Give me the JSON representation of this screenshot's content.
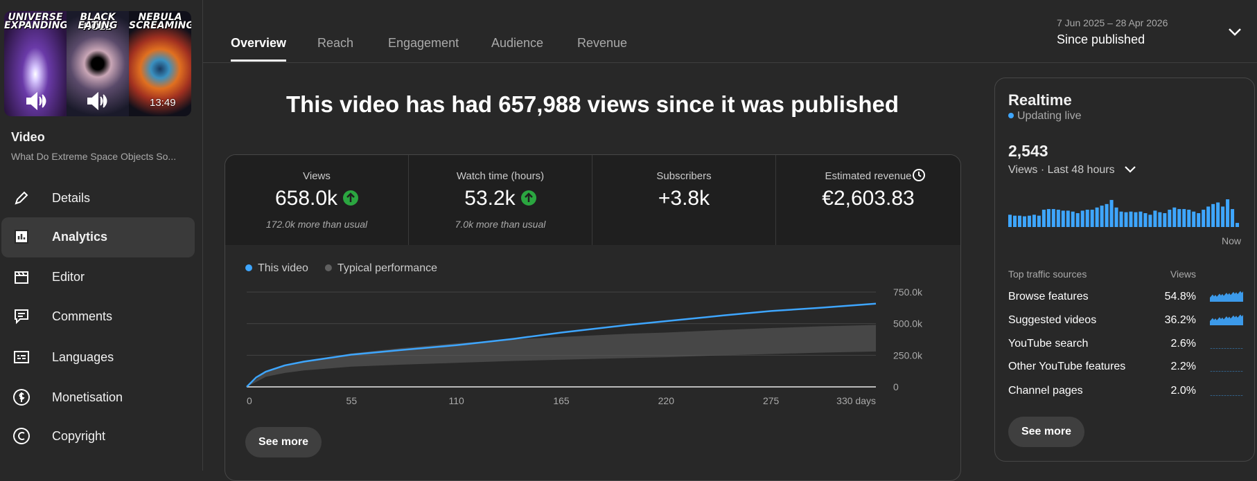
{
  "sidebar": {
    "thumbnail": {
      "panels": [
        [
          "UNIVERSE",
          "EXPANDING"
        ],
        [
          "BLACK HOLE",
          "EATING"
        ],
        [
          "NEBULA",
          "SCREAMING"
        ]
      ],
      "duration": "13:49"
    },
    "video_label": "Video",
    "video_title": "What Do Extreme Space Objects So...",
    "nav": [
      "Details",
      "Analytics",
      "Editor",
      "Comments",
      "Languages",
      "Monetisation",
      "Copyright"
    ]
  },
  "tabs": [
    "Overview",
    "Reach",
    "Engagement",
    "Audience",
    "Revenue"
  ],
  "date_range": {
    "dates": "7 Jun 2025 – 28 Apr 2026",
    "label": "Since published"
  },
  "headline": "This video has had 657,988 views since it was published",
  "metrics": [
    {
      "label": "Views",
      "value": "658.0k",
      "note": "172.0k more than usual"
    },
    {
      "label": "Watch time (hours)",
      "value": "53.2k",
      "note": "7.0k more than usual"
    },
    {
      "label": "Subscribers",
      "value": "+3.8k"
    },
    {
      "label": "Estimated revenue",
      "value": "€2,603.83"
    }
  ],
  "chart_data": [
    {
      "type": "line",
      "x": [
        0,
        5,
        10,
        20,
        30,
        55,
        80,
        110,
        140,
        165,
        200,
        220,
        250,
        275,
        300,
        330
      ],
      "series": [
        {
          "name": "This video",
          "color": "#3ea6ff",
          "values": [
            0,
            75000,
            120000,
            170000,
            200000,
            255000,
            290000,
            330000,
            380000,
            430000,
            490000,
            520000,
            565000,
            600000,
            625000,
            658000
          ]
        },
        {
          "name": "Typical performance",
          "color": "#606060",
          "low": [
            0,
            40000,
            80000,
            110000,
            130000,
            160000,
            175000,
            190000,
            205000,
            215000,
            228000,
            235000,
            250000,
            260000,
            270000,
            280000
          ],
          "high": [
            0,
            60000,
            120000,
            170000,
            200000,
            265000,
            305000,
            345000,
            375000,
            395000,
            420000,
            430000,
            450000,
            465000,
            478000,
            490000
          ]
        }
      ],
      "xlim": [
        0,
        330
      ],
      "xticks": [
        0,
        55,
        110,
        165,
        220,
        275,
        {
          "value": 330,
          "label": "330 days"
        }
      ],
      "ylim": [
        0,
        750000
      ],
      "yticks": [
        {
          "value": 0,
          "label": "0"
        },
        {
          "value": 250000,
          "label": "250.0k"
        },
        {
          "value": 500000,
          "label": "500.0k"
        },
        {
          "value": 750000,
          "label": "750.0k"
        }
      ],
      "grid": true
    },
    {
      "type": "bar",
      "color": "#3ea6ff",
      "values": [
        39,
        36,
        36,
        34,
        36,
        39,
        36,
        55,
        57,
        57,
        55,
        52,
        52,
        49,
        44,
        52,
        55,
        55,
        62,
        68,
        73,
        86,
        62,
        49,
        47,
        49,
        47,
        49,
        44,
        39,
        52,
        47,
        44,
        55,
        62,
        57,
        57,
        55,
        49,
        44,
        55,
        65,
        73,
        78,
        65,
        88,
        57,
        13
      ]
    }
  ],
  "see_more": "See more",
  "realtime": {
    "title": "Realtime",
    "status": "Updating live",
    "count": "2,543",
    "period": "Views · Last 48 hours",
    "now": "Now",
    "traffic": {
      "header": [
        "Top traffic sources",
        "Views"
      ],
      "rows": [
        [
          "Browse features",
          "54.8%"
        ],
        [
          "Suggested videos",
          "36.2%"
        ],
        [
          "YouTube search",
          "2.6%"
        ],
        [
          "Other YouTube features",
          "2.2%"
        ],
        [
          "Channel pages",
          "2.0%"
        ]
      ]
    },
    "see_more": "See more"
  }
}
